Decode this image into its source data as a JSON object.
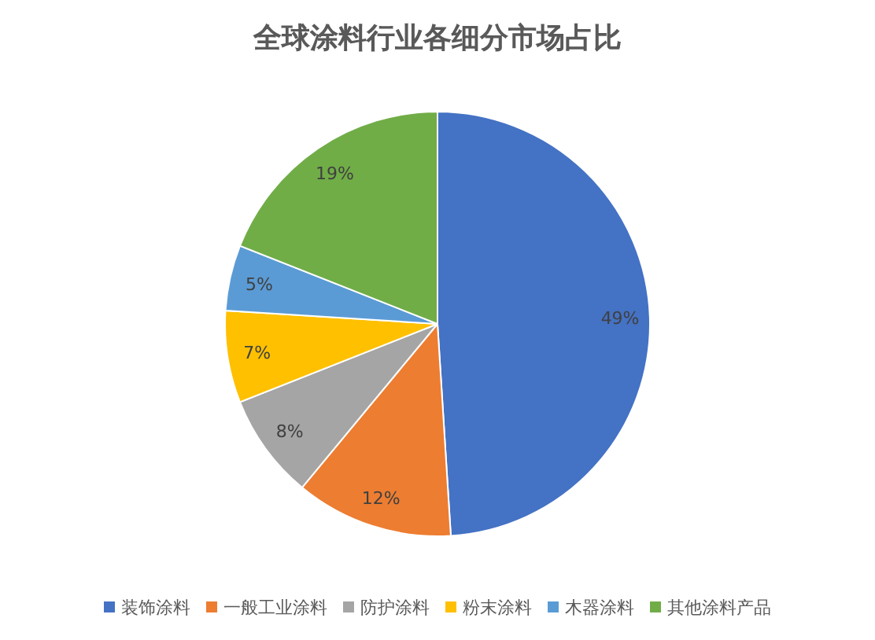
{
  "chart_data": {
    "type": "pie",
    "title": "全球涂料行业各细分市场占比",
    "categories": [
      "装饰涂料",
      "一般工业涂料",
      "防护涂料",
      "粉末涂料",
      "木器涂料",
      "其他涂料产品"
    ],
    "values": [
      49,
      12,
      8,
      7,
      5,
      19
    ],
    "colors": [
      "#4472c4",
      "#ed7d31",
      "#a5a5a5",
      "#ffc000",
      "#5b9bd5",
      "#70ad47"
    ],
    "value_labels": [
      "49%",
      "12%",
      "8%",
      "7%",
      "5%",
      "19%"
    ],
    "legend": "bottom"
  }
}
